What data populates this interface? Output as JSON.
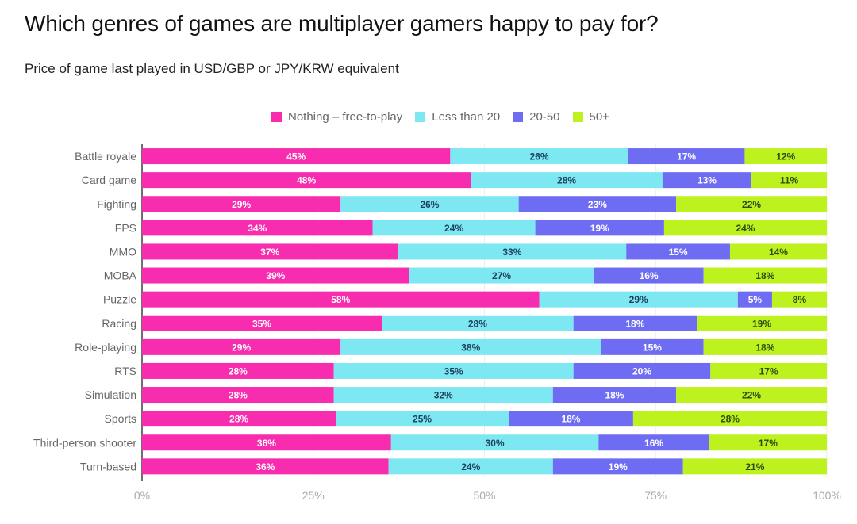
{
  "chart_data": {
    "type": "bar",
    "orientation": "horizontal",
    "stacked": "percent",
    "title": "Which genres of games are multiplayer gamers happy to pay for?",
    "subtitle": "Price of game last played in USD/GBP or JPY/KRW equivalent",
    "legend_position": "top",
    "grid": true,
    "xlim": [
      0,
      100
    ],
    "x_ticks": [
      "0%",
      "25%",
      "50%",
      "75%",
      "100%"
    ],
    "categories": [
      "Battle royale",
      "Card game",
      "Fighting",
      "FPS",
      "MMO",
      "MOBA",
      "Puzzle",
      "Racing",
      "Role-playing",
      "RTS",
      "Simulation",
      "Sports",
      "Third-person shooter",
      "Turn-based"
    ],
    "series": [
      {
        "name": "Nothing – free-to-play",
        "color": "#F72CAE",
        "label_color": "#ffffff",
        "values": [
          45,
          48,
          29,
          34,
          37,
          39,
          58,
          35,
          29,
          28,
          28,
          28,
          36,
          36
        ]
      },
      {
        "name": "Less than 20",
        "color": "#7DE8F2",
        "label_color": "#1E3F5C",
        "values": [
          26,
          28,
          26,
          24,
          33,
          27,
          29,
          28,
          38,
          35,
          32,
          25,
          30,
          24
        ]
      },
      {
        "name": "20-50",
        "color": "#6E6CF2",
        "label_color": "#ffffff",
        "values": [
          17,
          13,
          23,
          19,
          15,
          16,
          5,
          18,
          15,
          20,
          18,
          18,
          16,
          19
        ]
      },
      {
        "name": "50+",
        "color": "#BEF21E",
        "label_color": "#2E4A12",
        "values": [
          12,
          11,
          22,
          24,
          14,
          18,
          8,
          19,
          18,
          17,
          22,
          28,
          17,
          21
        ]
      }
    ]
  }
}
